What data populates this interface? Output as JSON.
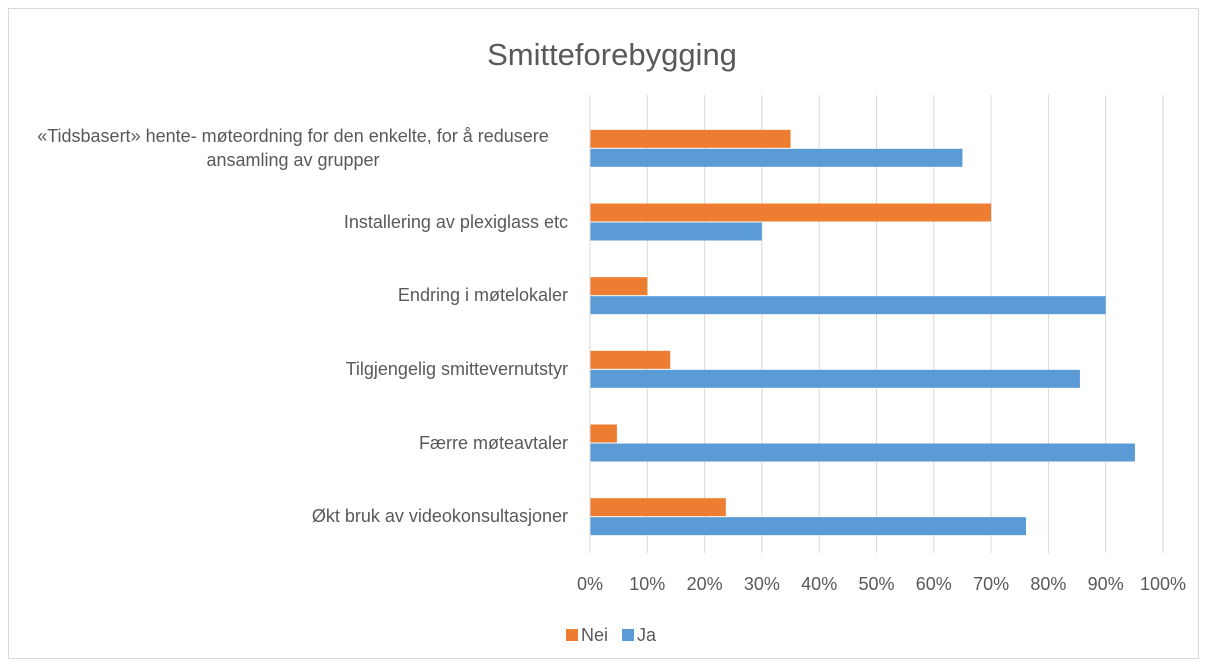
{
  "chart_data": {
    "type": "hbar",
    "title": "Smitteforebygging",
    "categories": [
      "«Tidsbasert» hente- møteordning for den enkelte, for å redusere ansamling av grupper",
      "Installering av plexiglass etc",
      "Endring i møtelokaler",
      "Tilgjengelig smittevernutstyr",
      "Færre møteavtaler",
      "Økt bruk av videokonsultasjoner"
    ],
    "series": [
      {
        "name": "Nei",
        "color": "#ed7d31",
        "values": [
          35,
          70,
          10,
          14,
          4.7,
          23.7
        ]
      },
      {
        "name": "Ja",
        "color": "#5b9bd5",
        "values": [
          65,
          30,
          90,
          85.5,
          95.1,
          76.1
        ]
      }
    ],
    "xlim": [
      0,
      100
    ],
    "xticks": [
      {
        "value": 0,
        "label": "0%"
      },
      {
        "value": 10,
        "label": "10%"
      },
      {
        "value": 20,
        "label": "20%"
      },
      {
        "value": 30,
        "label": "30%"
      },
      {
        "value": 40,
        "label": "40%"
      },
      {
        "value": 50,
        "label": "50%"
      },
      {
        "value": 60,
        "label": "60%"
      },
      {
        "value": 70,
        "label": "70%"
      },
      {
        "value": 80,
        "label": "80%"
      },
      {
        "value": 90,
        "label": "90%"
      },
      {
        "value": 100,
        "label": "100%"
      }
    ],
    "grid": true,
    "legend": "bottom"
  }
}
